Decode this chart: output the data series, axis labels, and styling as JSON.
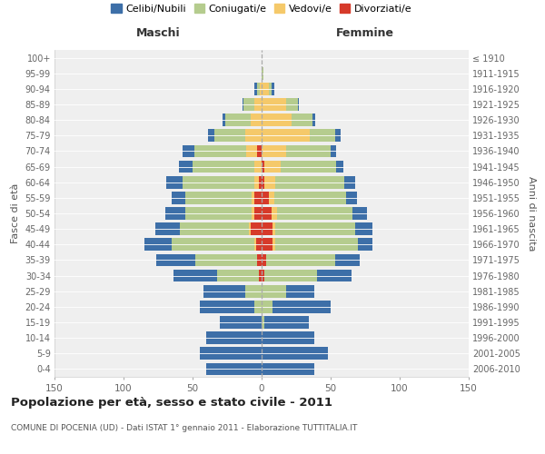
{
  "age_groups": [
    "0-4",
    "5-9",
    "10-14",
    "15-19",
    "20-24",
    "25-29",
    "30-34",
    "35-39",
    "40-44",
    "45-49",
    "50-54",
    "55-59",
    "60-64",
    "65-69",
    "70-74",
    "75-79",
    "80-84",
    "85-89",
    "90-94",
    "95-99",
    "100+"
  ],
  "birth_years": [
    "2006-2010",
    "2001-2005",
    "1996-2000",
    "1991-1995",
    "1986-1990",
    "1981-1985",
    "1976-1980",
    "1971-1975",
    "1966-1970",
    "1961-1965",
    "1956-1960",
    "1951-1955",
    "1946-1950",
    "1941-1945",
    "1936-1940",
    "1931-1935",
    "1926-1930",
    "1921-1925",
    "1916-1920",
    "1911-1915",
    "≤ 1910"
  ],
  "maschi_celibi": [
    40,
    45,
    40,
    30,
    40,
    30,
    32,
    28,
    20,
    18,
    15,
    10,
    12,
    10,
    8,
    5,
    2,
    1,
    2,
    0,
    0
  ],
  "maschi_coniugati": [
    0,
    0,
    0,
    0,
    5,
    12,
    30,
    45,
    60,
    50,
    48,
    48,
    52,
    45,
    38,
    22,
    18,
    8,
    2,
    0,
    0
  ],
  "maschi_vedovi": [
    0,
    0,
    0,
    0,
    0,
    0,
    0,
    0,
    1,
    1,
    2,
    2,
    3,
    5,
    8,
    12,
    8,
    5,
    1,
    0,
    0
  ],
  "maschi_divorziati": [
    0,
    0,
    0,
    0,
    0,
    0,
    2,
    3,
    4,
    8,
    5,
    5,
    2,
    0,
    3,
    0,
    0,
    0,
    0,
    0,
    0
  ],
  "femmine_nubili": [
    38,
    48,
    38,
    32,
    42,
    20,
    25,
    18,
    10,
    12,
    10,
    8,
    8,
    5,
    4,
    4,
    2,
    1,
    2,
    0,
    0
  ],
  "femmine_coniugate": [
    0,
    0,
    0,
    2,
    8,
    18,
    38,
    50,
    60,
    58,
    55,
    52,
    50,
    40,
    32,
    18,
    15,
    8,
    2,
    1,
    0
  ],
  "femmine_vedove": [
    0,
    0,
    0,
    0,
    0,
    0,
    0,
    0,
    2,
    2,
    4,
    4,
    8,
    12,
    18,
    35,
    22,
    18,
    5,
    0,
    0
  ],
  "femmine_divorziate": [
    0,
    0,
    0,
    0,
    0,
    0,
    2,
    3,
    8,
    8,
    7,
    5,
    2,
    2,
    0,
    0,
    0,
    0,
    0,
    0,
    0
  ],
  "colors": {
    "celibi": "#3d6fa8",
    "coniugati": "#b5cc8e",
    "vedovi": "#f5c96a",
    "divorziati": "#d63a2a"
  },
  "title": "Popolazione per età, sesso e stato civile - 2011",
  "subtitle": "COMUNE DI POCENIA (UD) - Dati ISTAT 1° gennaio 2011 - Elaborazione TUTTITALIA.IT",
  "xlabel_left": "Maschi",
  "xlabel_right": "Femmine",
  "ylabel_left": "Fasce di età",
  "ylabel_right": "Anni di nascita",
  "xlim": 150,
  "legend_labels": [
    "Celibi/Nubili",
    "Coniugati/e",
    "Vedovi/e",
    "Divorziati/e"
  ],
  "bg_color": "#efefef"
}
